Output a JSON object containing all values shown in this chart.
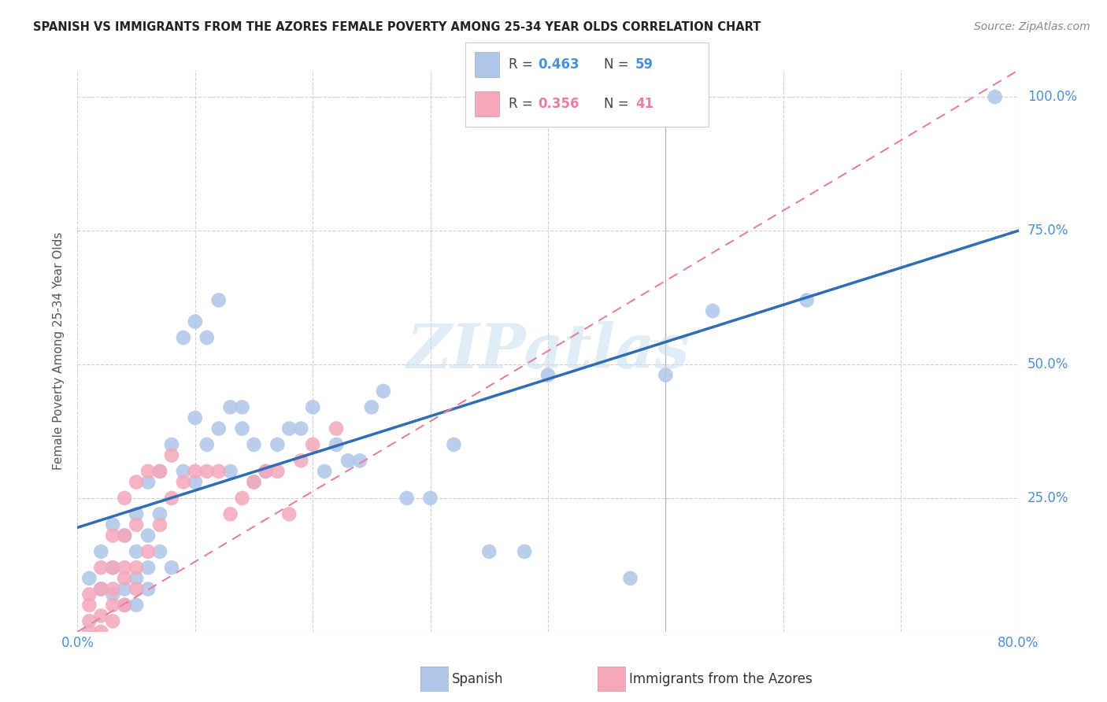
{
  "title": "SPANISH VS IMMIGRANTS FROM THE AZORES FEMALE POVERTY AMONG 25-34 YEAR OLDS CORRELATION CHART",
  "source": "Source: ZipAtlas.com",
  "ylabel": "Female Poverty Among 25-34 Year Olds",
  "xlim": [
    0.0,
    0.8
  ],
  "ylim": [
    0.0,
    1.05
  ],
  "xticks": [
    0.0,
    0.1,
    0.2,
    0.3,
    0.4,
    0.5,
    0.6,
    0.7,
    0.8
  ],
  "ytick_positions": [
    0.0,
    0.25,
    0.5,
    0.75,
    1.0
  ],
  "yticklabels": [
    "",
    "25.0%",
    "50.0%",
    "75.0%",
    "100.0%"
  ],
  "grid_color": "#d0d0d0",
  "background_color": "#ffffff",
  "watermark": "ZIPatlas",
  "spanish_color": "#aec6e8",
  "azores_color": "#f4a7b9",
  "spanish_line_color": "#2e6db4",
  "azores_line_color": "#e87fa0",
  "spanish_R": 0.463,
  "spanish_N": 59,
  "azores_R": 0.356,
  "azores_N": 41,
  "spanish_line_x0": 0.0,
  "spanish_line_y0": 0.195,
  "spanish_line_x1": 0.8,
  "spanish_line_y1": 0.75,
  "azores_line_x0": 0.0,
  "azores_line_y0": 0.0,
  "azores_line_x1": 0.8,
  "azores_line_y1": 1.05,
  "spanish_x": [
    0.01,
    0.02,
    0.02,
    0.03,
    0.03,
    0.03,
    0.04,
    0.04,
    0.04,
    0.05,
    0.05,
    0.05,
    0.05,
    0.06,
    0.06,
    0.06,
    0.06,
    0.07,
    0.07,
    0.07,
    0.08,
    0.08,
    0.09,
    0.09,
    0.1,
    0.1,
    0.1,
    0.11,
    0.11,
    0.12,
    0.12,
    0.13,
    0.13,
    0.14,
    0.14,
    0.15,
    0.15,
    0.16,
    0.17,
    0.18,
    0.19,
    0.2,
    0.21,
    0.22,
    0.23,
    0.24,
    0.25,
    0.26,
    0.28,
    0.3,
    0.32,
    0.35,
    0.38,
    0.4,
    0.47,
    0.5,
    0.54,
    0.62,
    0.78
  ],
  "spanish_y": [
    0.1,
    0.08,
    0.15,
    0.12,
    0.2,
    0.07,
    0.08,
    0.18,
    0.05,
    0.1,
    0.15,
    0.22,
    0.05,
    0.12,
    0.28,
    0.08,
    0.18,
    0.22,
    0.3,
    0.15,
    0.12,
    0.35,
    0.3,
    0.55,
    0.28,
    0.58,
    0.4,
    0.55,
    0.35,
    0.38,
    0.62,
    0.42,
    0.3,
    0.42,
    0.38,
    0.35,
    0.28,
    0.3,
    0.35,
    0.38,
    0.38,
    0.42,
    0.3,
    0.35,
    0.32,
    0.32,
    0.42,
    0.45,
    0.25,
    0.25,
    0.35,
    0.15,
    0.15,
    0.48,
    0.1,
    0.48,
    0.6,
    0.62,
    1.0
  ],
  "azores_x": [
    0.01,
    0.01,
    0.01,
    0.01,
    0.02,
    0.02,
    0.02,
    0.02,
    0.03,
    0.03,
    0.03,
    0.03,
    0.03,
    0.04,
    0.04,
    0.04,
    0.04,
    0.04,
    0.05,
    0.05,
    0.05,
    0.05,
    0.06,
    0.06,
    0.07,
    0.07,
    0.08,
    0.08,
    0.09,
    0.1,
    0.11,
    0.12,
    0.13,
    0.14,
    0.15,
    0.16,
    0.17,
    0.18,
    0.19,
    0.2,
    0.22
  ],
  "azores_y": [
    0.0,
    0.02,
    0.05,
    0.07,
    0.0,
    0.03,
    0.08,
    0.12,
    0.02,
    0.05,
    0.08,
    0.12,
    0.18,
    0.05,
    0.1,
    0.12,
    0.18,
    0.25,
    0.08,
    0.12,
    0.2,
    0.28,
    0.15,
    0.3,
    0.2,
    0.3,
    0.25,
    0.33,
    0.28,
    0.3,
    0.3,
    0.3,
    0.22,
    0.25,
    0.28,
    0.3,
    0.3,
    0.22,
    0.32,
    0.35,
    0.38
  ]
}
